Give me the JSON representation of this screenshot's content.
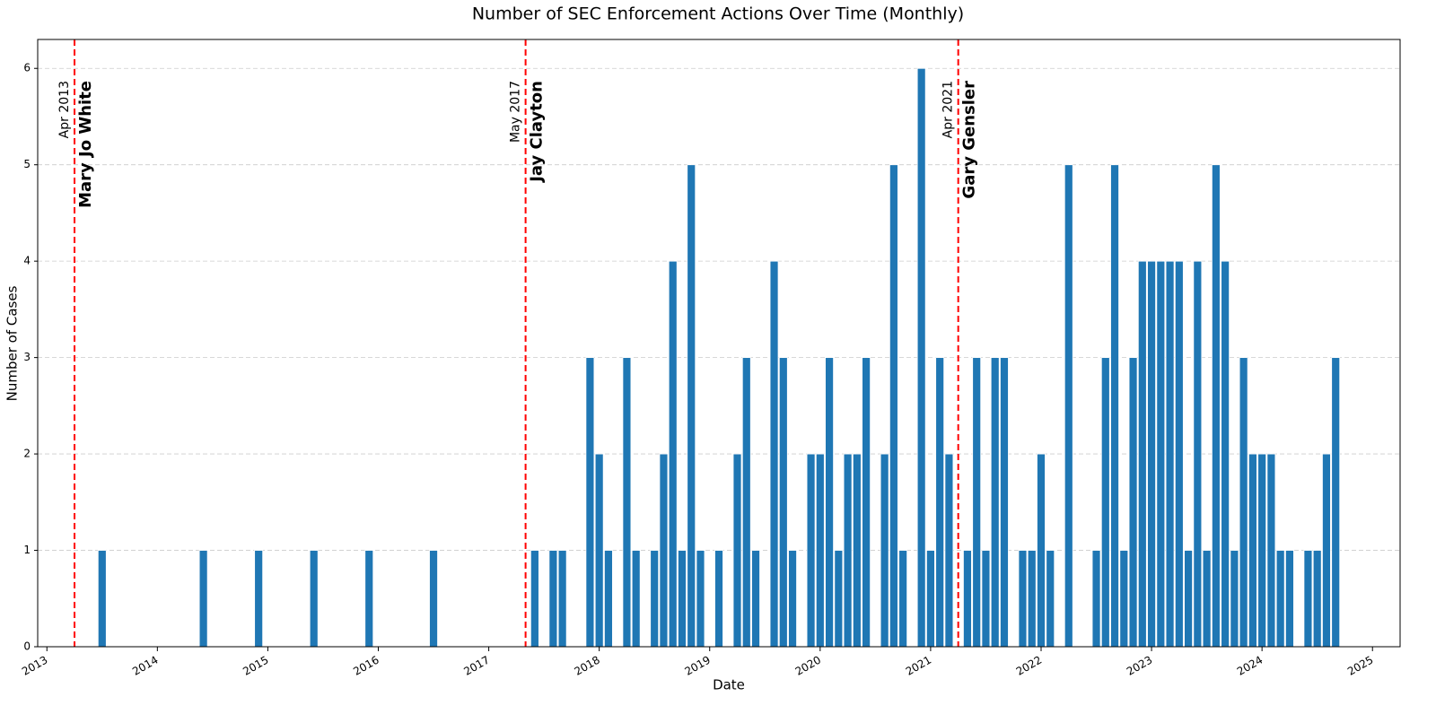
{
  "chart_data": {
    "type": "bar",
    "title": "Number of SEC Enforcement Actions Over Time (Monthly)",
    "x_label": "Date",
    "y_label": "Number of Cases",
    "color": "#1f77b4",
    "grid": true,
    "x": [
      "2013-06",
      "2014-05",
      "2014-11",
      "2015-05",
      "2015-11",
      "2016-06",
      "2017-05",
      "2017-07",
      "2017-08",
      "2017-11",
      "2017-12",
      "2018-01",
      "2018-03",
      "2018-04",
      "2018-06",
      "2018-07",
      "2018-08",
      "2018-09",
      "2018-10",
      "2018-11",
      "2019-01",
      "2019-03",
      "2019-04",
      "2019-05",
      "2019-07",
      "2019-08",
      "2019-09",
      "2019-11",
      "2019-12",
      "2020-01",
      "2020-02",
      "2020-03",
      "2020-04",
      "2020-05",
      "2020-07",
      "2020-08",
      "2020-09",
      "2020-11",
      "2020-12",
      "2021-01",
      "2021-02",
      "2021-04",
      "2021-05",
      "2021-06",
      "2021-07",
      "2021-08",
      "2021-10",
      "2021-11",
      "2021-12",
      "2022-01",
      "2022-03",
      "2022-06",
      "2022-07",
      "2022-08",
      "2022-09",
      "2022-10",
      "2022-11",
      "2022-12",
      "2023-01",
      "2023-02",
      "2023-03",
      "2023-04",
      "2023-05",
      "2023-06",
      "2023-07",
      "2023-08",
      "2023-09",
      "2023-10",
      "2023-11",
      "2023-12",
      "2024-01",
      "2024-02",
      "2024-03",
      "2024-05",
      "2024-06",
      "2024-07",
      "2024-08"
    ],
    "values": [
      1,
      1,
      1,
      1,
      1,
      1,
      1,
      1,
      1,
      3,
      2,
      1,
      3,
      1,
      1,
      2,
      4,
      1,
      5,
      1,
      1,
      2,
      3,
      1,
      4,
      3,
      1,
      2,
      2,
      3,
      1,
      2,
      2,
      3,
      2,
      5,
      1,
      6,
      1,
      3,
      2,
      1,
      3,
      1,
      3,
      3,
      1,
      1,
      2,
      1,
      5,
      1,
      3,
      5,
      1,
      3,
      4,
      4,
      4,
      4,
      4,
      1,
      4,
      1,
      5,
      4,
      1,
      3,
      2,
      2,
      2,
      1,
      1,
      1,
      1,
      2,
      3
    ],
    "xlim": [
      "2012-12",
      "2025-04"
    ],
    "xticks": [
      2013,
      2014,
      2015,
      2016,
      2017,
      2018,
      2019,
      2020,
      2021,
      2022,
      2023,
      2024,
      2025
    ],
    "ylim": [
      0,
      6.3
    ],
    "yticks": [
      0,
      1,
      2,
      3,
      4,
      5,
      6
    ],
    "markers": [
      {
        "date": "2013-04",
        "label": "Apr 2013",
        "name": "Mary Jo White"
      },
      {
        "date": "2017-05",
        "label": "May 2017",
        "name": "Jay Clayton"
      },
      {
        "date": "2021-04",
        "label": "Apr 2021",
        "name": "Gary Gensler"
      }
    ],
    "marker_color": "#ff0000"
  }
}
